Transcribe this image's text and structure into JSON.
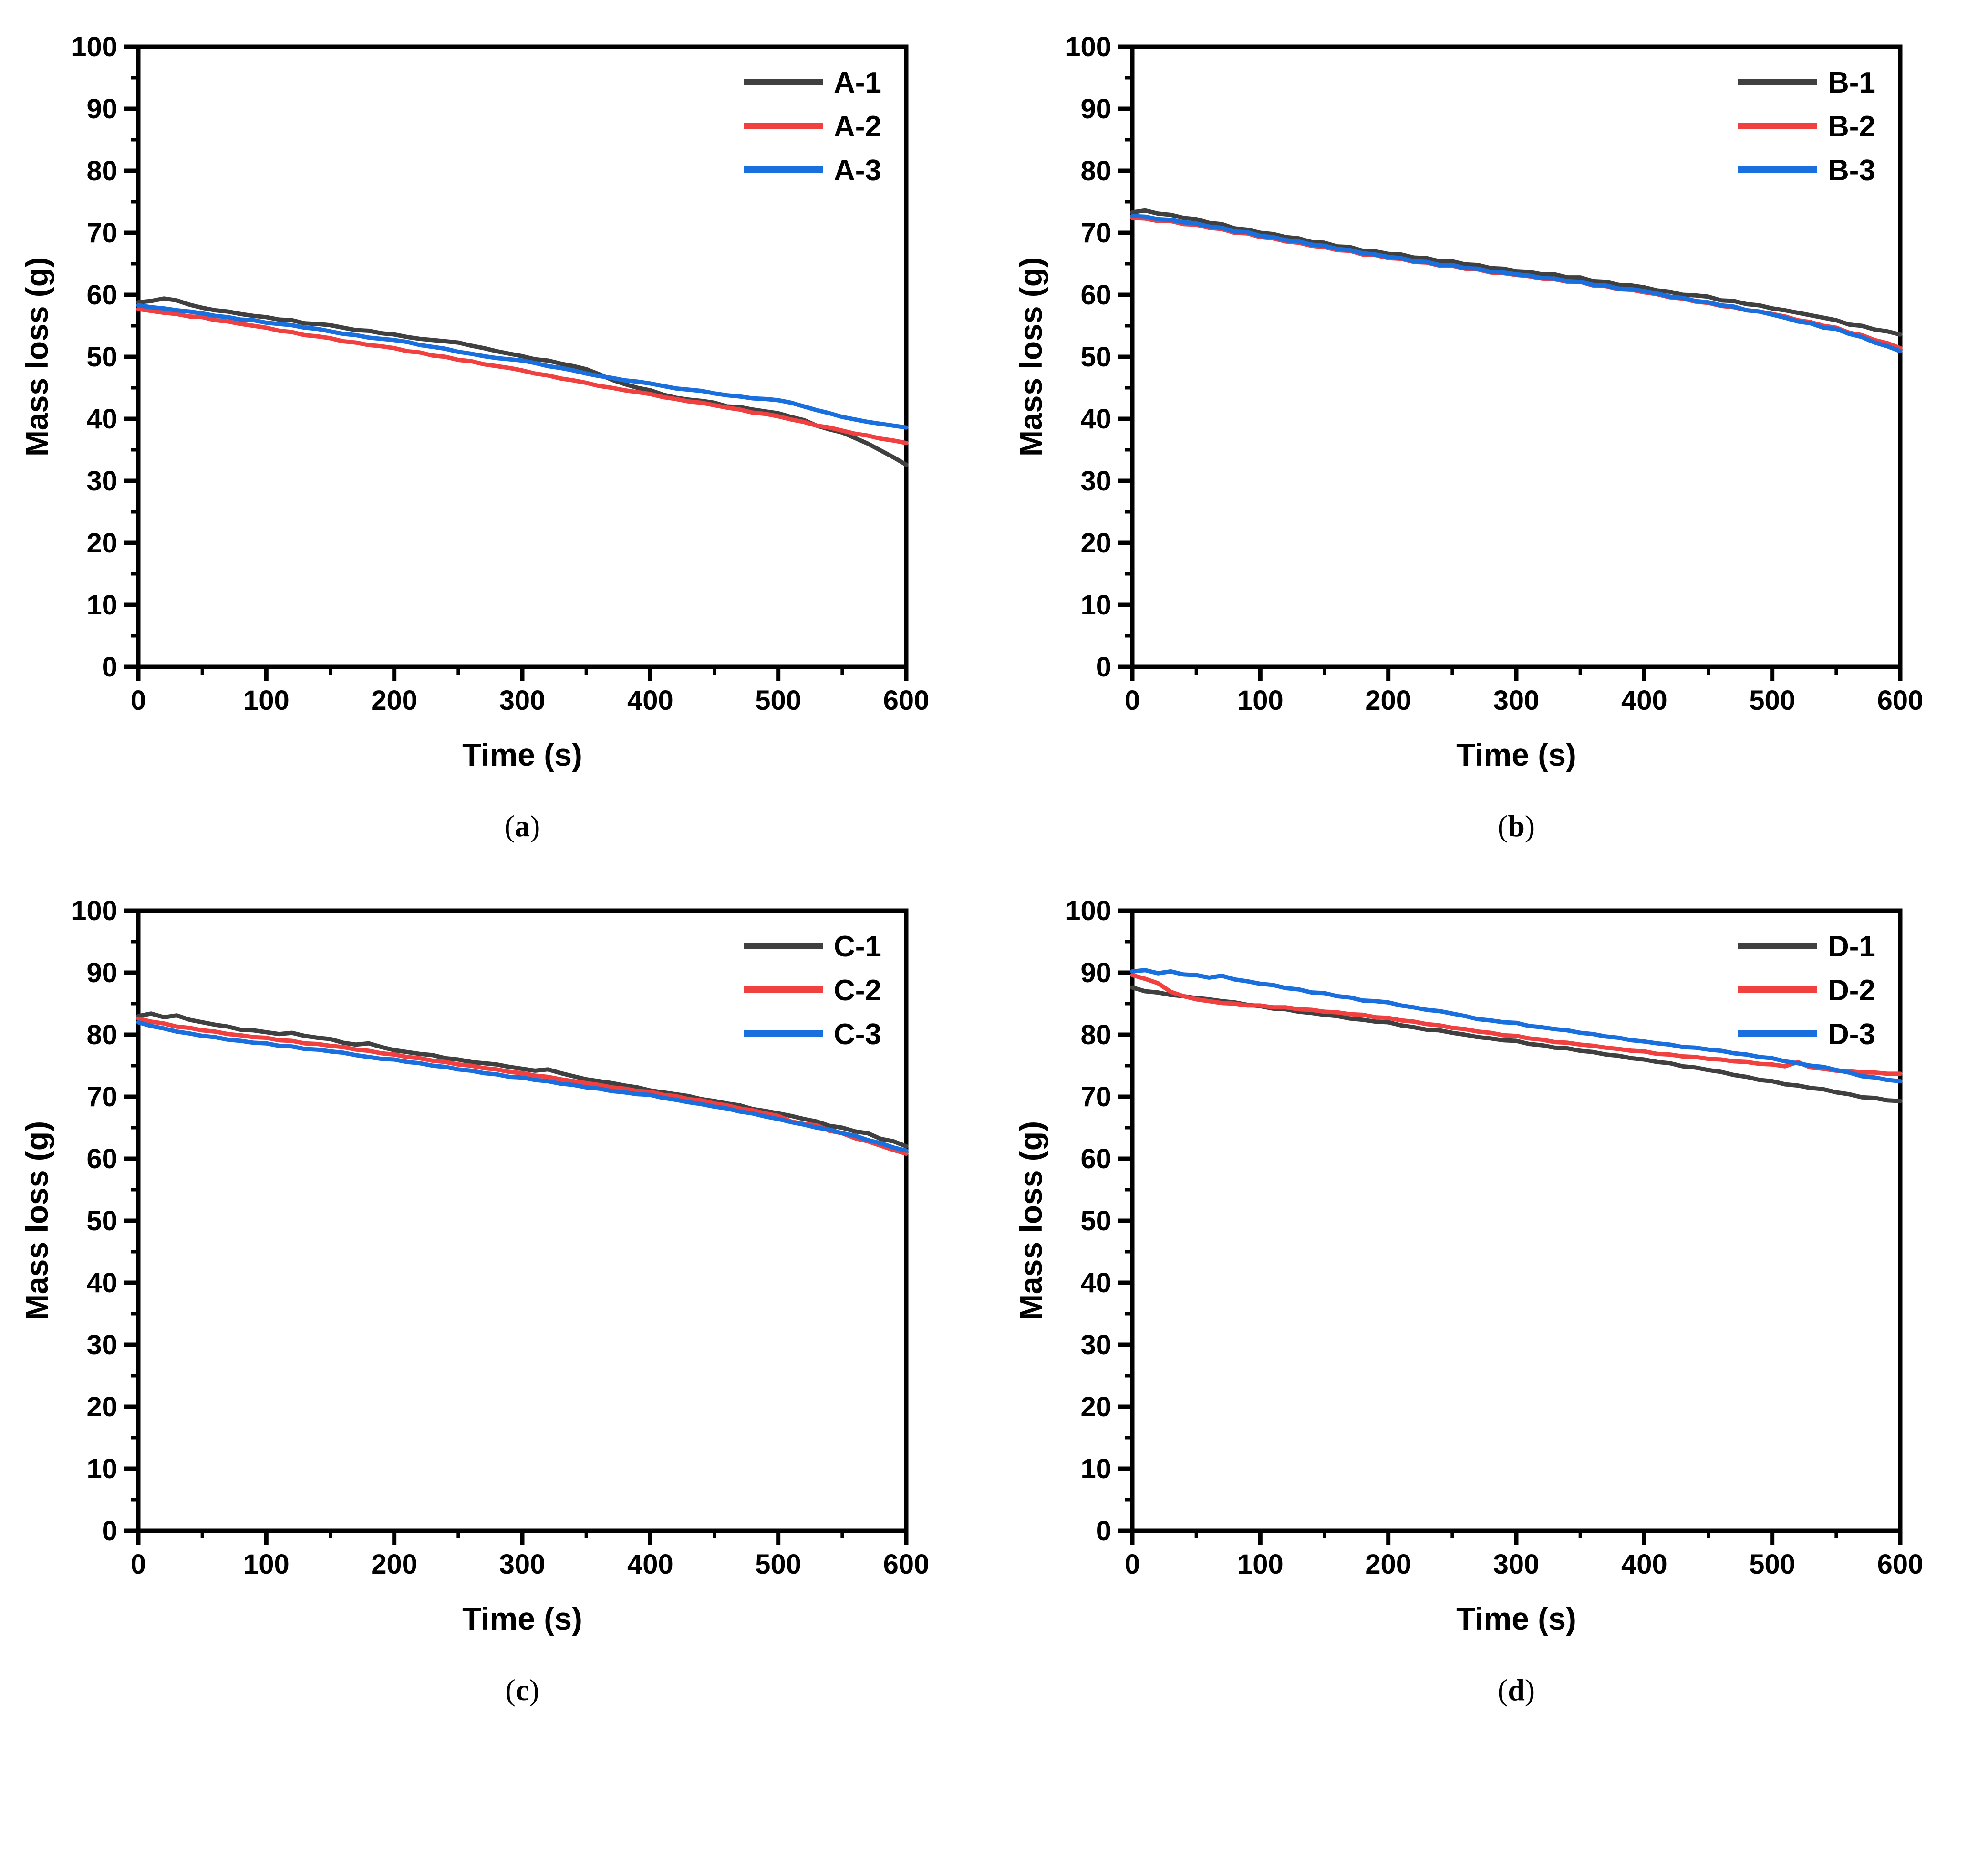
{
  "figure": {
    "background": "#ffffff",
    "axis_color": "#000000",
    "xlabel": "Time (s)",
    "ylabel": "Mass loss (g)"
  },
  "chart_data": [
    {
      "type": "line",
      "panel": "a",
      "caption_prefix": "(",
      "caption_letter": "a",
      "caption_suffix": ")",
      "xlabel": "Time (s)",
      "ylabel": "Mass loss (g)",
      "xlim": [
        0,
        600
      ],
      "ylim": [
        0,
        100
      ],
      "x_ticks": [
        0,
        100,
        200,
        300,
        400,
        500,
        600
      ],
      "y_ticks": [
        0,
        10,
        20,
        30,
        40,
        50,
        60,
        70,
        80,
        90,
        100
      ],
      "x_minor_step": 50,
      "y_minor_step": 5,
      "grid": false,
      "legend_position": "top-right",
      "x_start": 0,
      "x_step": 10,
      "series": [
        {
          "name": "A-1",
          "color": "#404040",
          "y": [
            58.8,
            59.0,
            59.4,
            59.1,
            58.4,
            57.9,
            57.5,
            57.3,
            56.9,
            56.6,
            56.4,
            56.0,
            55.9,
            55.4,
            55.3,
            55.1,
            54.7,
            54.3,
            54.2,
            53.8,
            53.6,
            53.2,
            52.9,
            52.7,
            52.5,
            52.3,
            51.8,
            51.4,
            50.9,
            50.5,
            50.1,
            49.6,
            49.4,
            48.9,
            48.5,
            48.0,
            47.2,
            46.3,
            45.6,
            45.0,
            44.6,
            43.9,
            43.4,
            43.1,
            42.9,
            42.6,
            42.0,
            41.9,
            41.5,
            41.2,
            40.9,
            40.3,
            39.8,
            38.9,
            38.3,
            37.8,
            36.9,
            36.0,
            34.9,
            33.8,
            32.6
          ]
        },
        {
          "name": "A-2",
          "color": "#F14040",
          "y": [
            57.7,
            57.4,
            57.1,
            56.9,
            56.5,
            56.4,
            55.9,
            55.7,
            55.3,
            55.0,
            54.7,
            54.2,
            54.0,
            53.5,
            53.3,
            53.0,
            52.5,
            52.3,
            51.9,
            51.7,
            51.4,
            50.9,
            50.7,
            50.2,
            50.0,
            49.5,
            49.3,
            48.8,
            48.5,
            48.2,
            47.8,
            47.3,
            47.0,
            46.5,
            46.2,
            45.8,
            45.3,
            45.0,
            44.6,
            44.3,
            44.0,
            43.5,
            43.2,
            42.8,
            42.6,
            42.2,
            41.8,
            41.5,
            41.0,
            40.8,
            40.4,
            39.9,
            39.5,
            38.9,
            38.6,
            38.1,
            37.6,
            37.3,
            36.8,
            36.5,
            36.1
          ]
        },
        {
          "name": "A-3",
          "color": "#1A6FDF",
          "y": [
            58.3,
            58.0,
            57.8,
            57.5,
            57.3,
            57.0,
            56.6,
            56.4,
            56.0,
            55.9,
            55.5,
            55.3,
            55.1,
            54.7,
            54.5,
            54.1,
            53.7,
            53.5,
            53.1,
            52.9,
            52.7,
            52.4,
            51.9,
            51.6,
            51.3,
            50.8,
            50.5,
            50.1,
            49.8,
            49.6,
            49.4,
            49.0,
            48.5,
            48.2,
            47.8,
            47.3,
            46.9,
            46.6,
            46.2,
            46.0,
            45.7,
            45.3,
            44.9,
            44.7,
            44.5,
            44.1,
            43.8,
            43.6,
            43.3,
            43.2,
            43.0,
            42.6,
            42.0,
            41.4,
            40.9,
            40.3,
            39.9,
            39.5,
            39.2,
            38.9,
            38.6
          ]
        }
      ]
    },
    {
      "type": "line",
      "panel": "b",
      "caption_prefix": "(",
      "caption_letter": "b",
      "caption_suffix": ")",
      "xlabel": "Time (s)",
      "ylabel": "Mass loss (g)",
      "xlim": [
        0,
        600
      ],
      "ylim": [
        0,
        100
      ],
      "x_ticks": [
        0,
        100,
        200,
        300,
        400,
        500,
        600
      ],
      "y_ticks": [
        0,
        10,
        20,
        30,
        40,
        50,
        60,
        70,
        80,
        90,
        100
      ],
      "x_minor_step": 50,
      "y_minor_step": 5,
      "grid": false,
      "legend_position": "top-right",
      "x_start": 0,
      "x_step": 10,
      "series": [
        {
          "name": "B-1",
          "color": "#404040",
          "y": [
            73.3,
            73.6,
            73.1,
            72.9,
            72.4,
            72.2,
            71.6,
            71.4,
            70.7,
            70.5,
            70.0,
            69.8,
            69.3,
            69.1,
            68.5,
            68.4,
            67.8,
            67.7,
            67.1,
            67.0,
            66.6,
            66.5,
            66.0,
            65.9,
            65.4,
            65.4,
            64.9,
            64.8,
            64.3,
            64.2,
            63.8,
            63.7,
            63.3,
            63.3,
            62.8,
            62.8,
            62.2,
            62.1,
            61.6,
            61.5,
            61.2,
            60.7,
            60.5,
            60.0,
            59.9,
            59.7,
            59.1,
            59.0,
            58.5,
            58.3,
            57.8,
            57.5,
            57.1,
            56.7,
            56.3,
            55.9,
            55.2,
            55.0,
            54.4,
            54.1,
            53.6
          ]
        },
        {
          "name": "B-2",
          "color": "#F14040",
          "y": [
            72.4,
            72.3,
            71.9,
            71.9,
            71.4,
            71.3,
            70.8,
            70.6,
            70.0,
            69.9,
            69.3,
            69.1,
            68.6,
            68.4,
            67.9,
            67.7,
            67.2,
            67.1,
            66.5,
            66.4,
            65.9,
            65.8,
            65.3,
            65.2,
            64.7,
            64.7,
            64.2,
            64.1,
            63.6,
            63.5,
            63.2,
            63.0,
            62.6,
            62.5,
            62.1,
            62.1,
            61.5,
            61.4,
            60.9,
            60.8,
            60.4,
            60.1,
            59.6,
            59.4,
            58.9,
            58.7,
            58.2,
            58.0,
            57.5,
            57.3,
            56.9,
            56.5,
            55.9,
            55.6,
            55.0,
            54.7,
            53.9,
            53.5,
            52.7,
            52.2,
            51.4
          ]
        },
        {
          "name": "B-3",
          "color": "#1A6FDF",
          "y": [
            72.7,
            72.6,
            72.2,
            72.1,
            71.7,
            71.5,
            71.0,
            70.8,
            70.2,
            70.1,
            69.5,
            69.3,
            68.8,
            68.6,
            68.1,
            67.9,
            67.4,
            67.2,
            66.7,
            66.5,
            66.1,
            65.9,
            65.4,
            65.3,
            64.8,
            64.8,
            64.3,
            64.2,
            63.7,
            63.6,
            63.3,
            63.1,
            62.7,
            62.6,
            62.2,
            62.1,
            61.6,
            61.5,
            61.0,
            60.9,
            60.6,
            60.2,
            59.7,
            59.5,
            59.0,
            58.8,
            58.3,
            58.1,
            57.5,
            57.3,
            56.8,
            56.3,
            55.7,
            55.4,
            54.7,
            54.5,
            53.7,
            53.2,
            52.3,
            51.7,
            50.9
          ]
        }
      ]
    },
    {
      "type": "line",
      "panel": "c",
      "caption_prefix": "(",
      "caption_letter": "c",
      "caption_suffix": ")",
      "xlabel": "Time (s)",
      "ylabel": "Mass loss (g)",
      "xlim": [
        0,
        600
      ],
      "ylim": [
        0,
        100
      ],
      "x_ticks": [
        0,
        100,
        200,
        300,
        400,
        500,
        600
      ],
      "y_ticks": [
        0,
        10,
        20,
        30,
        40,
        50,
        60,
        70,
        80,
        90,
        100
      ],
      "x_minor_step": 50,
      "y_minor_step": 5,
      "grid": false,
      "legend_position": "top-right",
      "x_start": 0,
      "x_step": 10,
      "series": [
        {
          "name": "C-1",
          "color": "#404040",
          "y": [
            83.0,
            83.4,
            82.8,
            83.1,
            82.4,
            82.0,
            81.6,
            81.3,
            80.8,
            80.7,
            80.4,
            80.1,
            80.3,
            79.8,
            79.5,
            79.3,
            78.7,
            78.4,
            78.6,
            78.0,
            77.5,
            77.2,
            76.9,
            76.7,
            76.2,
            76.0,
            75.6,
            75.4,
            75.2,
            74.8,
            74.5,
            74.2,
            74.4,
            73.8,
            73.3,
            72.8,
            72.5,
            72.2,
            71.8,
            71.5,
            71.0,
            70.7,
            70.4,
            70.1,
            69.6,
            69.3,
            68.9,
            68.6,
            68.0,
            67.7,
            67.3,
            66.9,
            66.4,
            66.0,
            65.3,
            65.0,
            64.4,
            64.1,
            63.2,
            62.8,
            62.0
          ]
        },
        {
          "name": "C-2",
          "color": "#F14040",
          "y": [
            82.6,
            82.1,
            81.8,
            81.3,
            81.1,
            80.7,
            80.5,
            80.1,
            79.9,
            79.6,
            79.5,
            79.1,
            79.0,
            78.6,
            78.5,
            78.2,
            78.0,
            77.6,
            77.4,
            77.0,
            76.8,
            76.4,
            76.2,
            75.8,
            75.6,
            75.2,
            75.0,
            74.6,
            74.4,
            74.0,
            73.8,
            73.4,
            73.2,
            72.8,
            72.5,
            72.2,
            71.9,
            71.5,
            71.3,
            70.9,
            70.8,
            70.3,
            70.1,
            69.6,
            69.4,
            68.9,
            68.6,
            68.1,
            67.8,
            67.3,
            66.9,
            66.0,
            65.6,
            65.4,
            64.5,
            64.1,
            63.3,
            62.8,
            62.1,
            61.4,
            60.8
          ]
        },
        {
          "name": "C-3",
          "color": "#1A6FDF",
          "y": [
            82.0,
            81.4,
            81.0,
            80.5,
            80.2,
            79.8,
            79.6,
            79.2,
            79.0,
            78.7,
            78.6,
            78.2,
            78.1,
            77.7,
            77.6,
            77.3,
            77.1,
            76.7,
            76.4,
            76.1,
            76.0,
            75.6,
            75.4,
            75.0,
            74.8,
            74.4,
            74.2,
            73.8,
            73.6,
            73.2,
            73.1,
            72.7,
            72.5,
            72.1,
            71.9,
            71.5,
            71.3,
            70.9,
            70.7,
            70.4,
            70.3,
            69.8,
            69.5,
            69.1,
            68.8,
            68.4,
            68.1,
            67.6,
            67.3,
            66.8,
            66.4,
            65.9,
            65.5,
            65.0,
            64.7,
            64.1,
            63.7,
            63.0,
            62.5,
            61.8,
            61.3
          ]
        }
      ]
    },
    {
      "type": "line",
      "panel": "d",
      "caption_prefix": "(",
      "caption_letter": "d",
      "caption_suffix": ")",
      "xlabel": "Time (s)",
      "ylabel": "Mass loss (g)",
      "xlim": [
        0,
        600
      ],
      "ylim": [
        0,
        100
      ],
      "x_ticks": [
        0,
        100,
        200,
        300,
        400,
        500,
        600
      ],
      "y_ticks": [
        0,
        10,
        20,
        30,
        40,
        50,
        60,
        70,
        80,
        90,
        100
      ],
      "x_minor_step": 50,
      "y_minor_step": 5,
      "grid": false,
      "legend_position": "top-right",
      "x_start": 0,
      "x_step": 10,
      "series": [
        {
          "name": "D-1",
          "color": "#404040",
          "y": [
            87.6,
            87.0,
            86.8,
            86.4,
            86.2,
            85.9,
            85.7,
            85.4,
            85.2,
            84.8,
            84.6,
            84.2,
            84.1,
            83.7,
            83.5,
            83.2,
            83.0,
            82.6,
            82.4,
            82.1,
            82.0,
            81.5,
            81.2,
            80.8,
            80.7,
            80.3,
            80.0,
            79.6,
            79.4,
            79.1,
            79.0,
            78.5,
            78.3,
            77.9,
            77.8,
            77.4,
            77.2,
            76.8,
            76.6,
            76.2,
            76.0,
            75.6,
            75.4,
            74.9,
            74.7,
            74.3,
            74.0,
            73.5,
            73.2,
            72.7,
            72.5,
            72.0,
            71.8,
            71.4,
            71.2,
            70.7,
            70.4,
            69.9,
            69.8,
            69.4,
            69.3
          ]
        },
        {
          "name": "D-2",
          "color": "#F14040",
          "y": [
            89.6,
            89.0,
            88.3,
            86.9,
            86.2,
            85.7,
            85.4,
            85.1,
            85.0,
            84.7,
            84.7,
            84.4,
            84.4,
            84.1,
            84.0,
            83.7,
            83.6,
            83.3,
            83.2,
            82.8,
            82.7,
            82.3,
            82.1,
            81.7,
            81.5,
            81.1,
            80.9,
            80.5,
            80.3,
            79.9,
            79.8,
            79.4,
            79.2,
            78.8,
            78.7,
            78.4,
            78.2,
            77.9,
            77.7,
            77.4,
            77.3,
            76.9,
            76.8,
            76.5,
            76.4,
            76.1,
            76.0,
            75.7,
            75.6,
            75.3,
            75.2,
            74.9,
            75.6,
            74.7,
            74.5,
            74.2,
            74.1,
            73.9,
            73.9,
            73.7,
            73.7
          ]
        },
        {
          "name": "D-3",
          "color": "#1A6FDF",
          "y": [
            90.2,
            90.4,
            89.9,
            90.2,
            89.7,
            89.6,
            89.2,
            89.5,
            88.9,
            88.6,
            88.2,
            88.0,
            87.5,
            87.3,
            86.8,
            86.7,
            86.2,
            86.0,
            85.5,
            85.4,
            85.2,
            84.7,
            84.4,
            84.0,
            83.8,
            83.4,
            83.0,
            82.5,
            82.3,
            82.0,
            81.9,
            81.4,
            81.2,
            80.9,
            80.7,
            80.3,
            80.1,
            79.7,
            79.5,
            79.1,
            78.9,
            78.6,
            78.4,
            78.0,
            77.9,
            77.6,
            77.4,
            77.0,
            76.8,
            76.4,
            76.2,
            75.7,
            75.4,
            75.0,
            74.8,
            74.3,
            73.9,
            73.3,
            73.1,
            72.7,
            72.5
          ]
        }
      ]
    }
  ]
}
